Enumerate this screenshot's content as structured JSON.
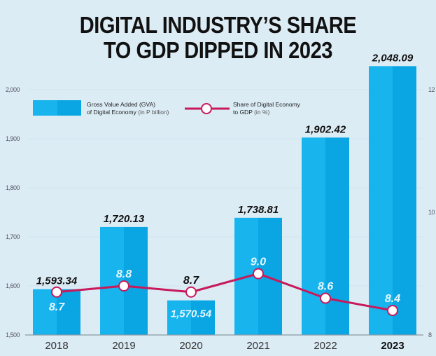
{
  "chart_data": {
    "type": "bar",
    "title": "DIGITAL INDUSTRY’S SHARE TO GDP DIPPED IN 2023",
    "title_lines": [
      "DIGITAL INDUSTRY’S SHARE",
      "TO GDP DIPPED IN 2023"
    ],
    "categories": [
      "2018",
      "2019",
      "2020",
      "2021",
      "2022",
      "2023"
    ],
    "highlight_category": "2023",
    "series": [
      {
        "name": "Gross Value Added (GVA) of Digital Economy (in P billion)",
        "type": "bar",
        "axis": "left",
        "values": [
          1593.34,
          1720.13,
          1570.54,
          1738.81,
          1902.42,
          2048.09
        ],
        "labels": [
          "1,593.34",
          "1,720.13",
          "1,570.54",
          "1,738.81",
          "1,902.42",
          "2,048.09"
        ],
        "color": "#0aa6e4",
        "color_light": "#17b4ee"
      },
      {
        "name": "Share of Digital Economy to GDP (in %)",
        "type": "line",
        "axis": "right",
        "values": [
          8.7,
          8.8,
          8.7,
          9.0,
          8.6,
          8.4
        ],
        "labels": [
          "8.7",
          "8.8",
          "8.7",
          "9.0",
          "8.6",
          "8.4"
        ],
        "color": "#c8195a"
      }
    ],
    "y_left": {
      "ylim": [
        1500,
        2000
      ],
      "ticks": [
        1500,
        1600,
        1700,
        1800,
        1900,
        2000
      ],
      "tick_labels": [
        "1,500",
        "1,600",
        "1,700",
        "1,800",
        "1,900",
        "2,000"
      ]
    },
    "y_right": {
      "ylim": [
        8,
        12
      ],
      "ticks": [
        8,
        10,
        12
      ],
      "tick_labels": [
        "8",
        "10",
        "12"
      ]
    },
    "legend": {
      "placement": "top-left",
      "items": [
        {
          "line1": "Gross Value Added (GVA)",
          "line2": "of Digital Economy",
          "unit": "(in P billion)"
        },
        {
          "line1": "Share of Digital Economy",
          "line2": "to GDP",
          "unit": "(in %)"
        }
      ]
    },
    "grid": true,
    "xlabel": "",
    "ylabel": ""
  }
}
